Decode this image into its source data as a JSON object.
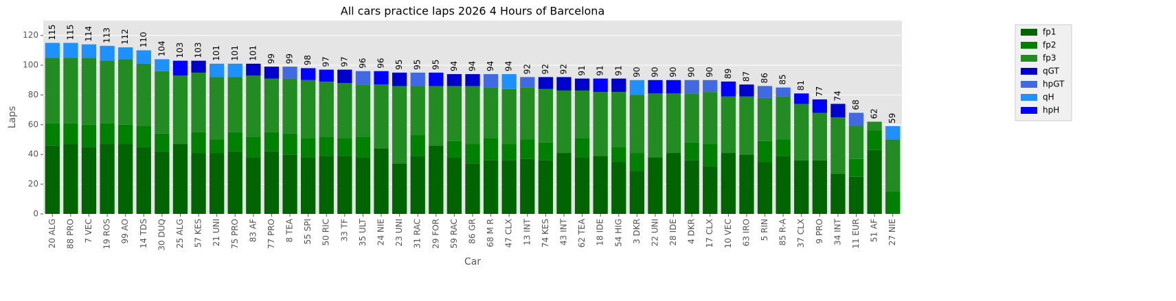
{
  "chart_data": {
    "type": "stacked_bar",
    "title": "All cars practice laps 2026 4 Hours of Barcelona",
    "x_label": "Car",
    "y_label": "Laps",
    "categories": [
      "20 ALG",
      "88 PRO",
      "7 VEC",
      "19 ROS",
      "99 AO",
      "14 TDS",
      "30 DUQ",
      "25 ALG",
      "57 KES",
      "21 UNI",
      "75 PRO",
      "83 AF",
      "77 PRO",
      "8 TEA",
      "55 SPI",
      "50 RIC",
      "33 TF",
      "35 ULT",
      "24 NIE",
      "23 UNI",
      "31 RAC",
      "29 FOR",
      "59 RAC",
      "86 GR",
      "68 M R",
      "47 CLX",
      "13 INT",
      "74 KES",
      "43 INT",
      "62 TEA",
      "18 IDE",
      "54 HIG",
      "3 DKR",
      "22 UNI",
      "28 IDE",
      "4 DKR",
      "17 CLX",
      "10 VEC",
      "63 IRO",
      "5 RIN",
      "85 R-A",
      "37 CLX",
      "9 PRO",
      "34 INT",
      "11 EUR",
      "51 AF",
      "27 NIE"
    ],
    "series": [
      {
        "name": "fp1",
        "color": "#006400",
        "values": [
          46,
          47,
          45,
          47,
          47,
          45,
          42,
          47,
          41,
          41,
          42,
          38,
          42,
          40,
          38,
          39,
          39,
          38,
          44,
          34,
          39,
          46,
          38,
          34,
          36,
          36,
          37,
          36,
          41,
          38,
          39,
          35,
          29,
          38,
          41,
          36,
          32,
          41,
          40,
          35,
          39,
          36,
          36,
          27,
          25,
          43,
          0
        ]
      },
      {
        "name": "fp2",
        "color": "#008000",
        "values": [
          15,
          14,
          15,
          14,
          13,
          14,
          12,
          0,
          14,
          9,
          13,
          14,
          13,
          14,
          13,
          13,
          12,
          14,
          0,
          0,
          14,
          0,
          11,
          13,
          15,
          11,
          13,
          12,
          0,
          13,
          0,
          10,
          12,
          0,
          0,
          12,
          15,
          0,
          0,
          14,
          11,
          0,
          0,
          0,
          12,
          13,
          15
        ]
      },
      {
        "name": "fp3",
        "color": "#228b22",
        "values": [
          44,
          44,
          45,
          42,
          44,
          42,
          42,
          46,
          40,
          42,
          37,
          41,
          36,
          37,
          39,
          37,
          37,
          35,
          43,
          52,
          33,
          40,
          37,
          39,
          34,
          37,
          35,
          36,
          42,
          32,
          43,
          37,
          39,
          43,
          40,
          33,
          35,
          38,
          39,
          29,
          29,
          38,
          32,
          38,
          22,
          6,
          35
        ]
      },
      {
        "name": "qGT",
        "color": "#0000cd",
        "values": [
          null,
          null,
          null,
          null,
          null,
          null,
          null,
          null,
          8,
          null,
          null,
          8,
          8,
          null,
          null,
          null,
          9,
          null,
          null,
          9,
          null,
          null,
          8,
          8,
          null,
          null,
          null,
          8,
          9,
          8,
          null,
          9,
          null,
          null,
          null,
          null,
          null,
          null,
          8,
          null,
          null,
          null,
          null,
          9,
          null,
          null,
          null
        ]
      },
      {
        "name": "hpGT",
        "color": "#4169e1",
        "values": [
          null,
          null,
          null,
          null,
          null,
          null,
          null,
          null,
          null,
          null,
          null,
          null,
          null,
          8,
          null,
          null,
          null,
          9,
          null,
          null,
          9,
          null,
          null,
          null,
          9,
          null,
          7,
          null,
          null,
          null,
          null,
          null,
          null,
          null,
          null,
          9,
          8,
          null,
          null,
          8,
          6,
          null,
          null,
          null,
          9,
          null,
          null
        ]
      },
      {
        "name": "qH",
        "color": "#1e90ff",
        "values": [
          10,
          10,
          9,
          10,
          8,
          9,
          8,
          null,
          null,
          9,
          9,
          null,
          null,
          null,
          null,
          null,
          null,
          null,
          null,
          null,
          null,
          null,
          null,
          null,
          null,
          10,
          null,
          null,
          null,
          null,
          null,
          null,
          10,
          null,
          null,
          null,
          null,
          null,
          null,
          null,
          null,
          null,
          null,
          null,
          null,
          null,
          9
        ]
      },
      {
        "name": "hpH",
        "color": "#0000ff",
        "values": [
          null,
          null,
          null,
          null,
          null,
          null,
          null,
          10,
          null,
          null,
          null,
          null,
          null,
          null,
          8,
          8,
          null,
          null,
          9,
          null,
          null,
          9,
          null,
          null,
          null,
          null,
          null,
          null,
          null,
          null,
          9,
          null,
          null,
          9,
          9,
          null,
          null,
          10,
          null,
          null,
          null,
          7,
          9,
          null,
          null,
          null,
          null
        ]
      }
    ],
    "totals": [
      115,
      115,
      114,
      113,
      112,
      110,
      104,
      103,
      103,
      101,
      101,
      101,
      99,
      99,
      98,
      97,
      97,
      96,
      96,
      95,
      95,
      95,
      94,
      94,
      94,
      94,
      92,
      92,
      92,
      91,
      91,
      91,
      90,
      90,
      90,
      90,
      90,
      89,
      87,
      86,
      85,
      81,
      77,
      74,
      68,
      62,
      59
    ],
    "ylim": [
      0,
      130
    ],
    "yticks": [
      0,
      20,
      40,
      60,
      80,
      100,
      120
    ],
    "grid": true,
    "legend": "outside right"
  }
}
